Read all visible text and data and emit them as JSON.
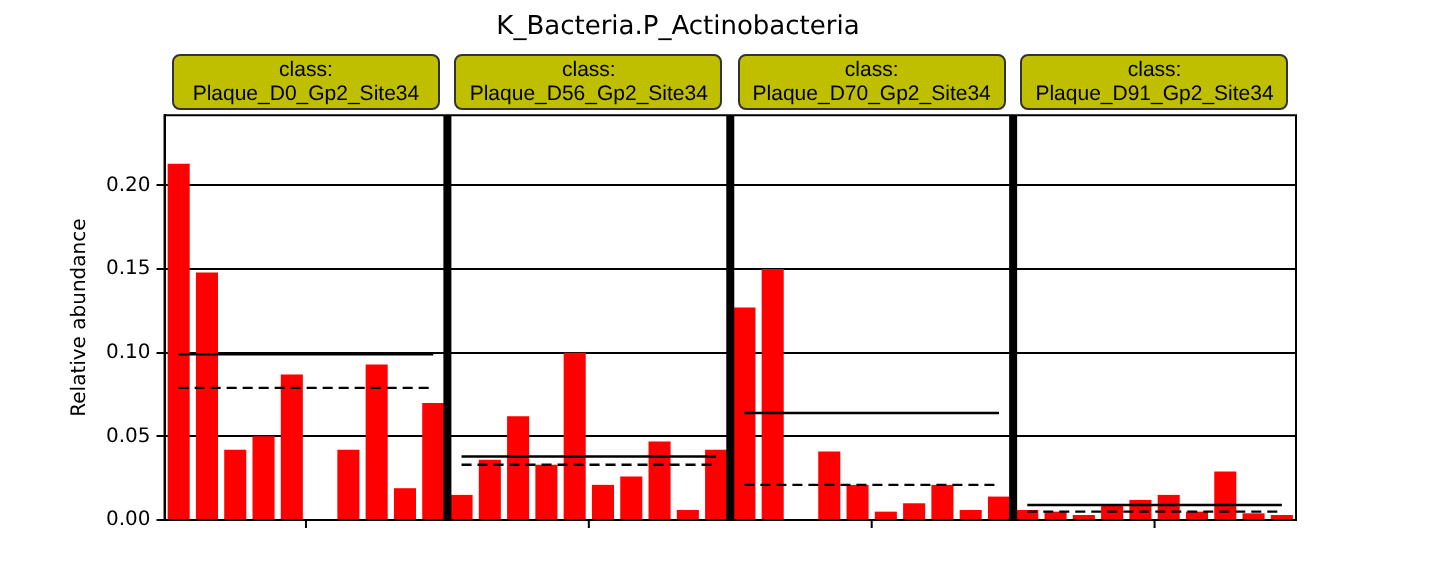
{
  "chart_data": {
    "type": "bar",
    "title": "K_Bacteria.P_Actinobacteria",
    "ylabel": "Relative abundance",
    "annotations": [
      "class: Plaque_D0_Gp2_Site34",
      "class: Plaque_D56_Gp2_Site34",
      "class: Plaque_D70_Gp2_Site34",
      "class: Plaque_D91_Gp2_Site34"
    ],
    "categories": [
      null,
      null,
      null,
      null,
      null,
      null,
      null,
      null,
      null,
      null,
      null,
      null,
      null,
      null,
      null,
      null,
      null,
      null,
      null,
      null,
      null,
      null,
      null,
      null,
      null,
      null,
      null,
      null,
      null,
      null,
      null,
      null,
      null,
      null,
      null,
      null,
      null,
      null,
      null,
      null
    ],
    "series": [
      {
        "color": "#ff0000",
        "values": [
          0.213,
          0.148,
          0.042,
          0.05,
          0.087,
          null,
          0.042,
          0.093,
          0.019,
          0.07,
          0.015,
          0.036,
          0.062,
          0.033,
          0.1,
          0.021,
          0.026,
          0.047,
          0.006,
          0.042,
          0.127,
          0.15,
          null,
          0.041,
          0.021,
          0.005,
          0.01,
          0.021,
          0.006,
          0.014,
          0.006,
          0.005,
          0.003,
          0.009,
          0.012,
          0.015,
          0.005,
          0.029,
          0.004,
          0.003
        ]
      },
      {
        "type": "line",
        "color": "#000000",
        "line_style": "solid",
        "values": [
          0.099,
          0.099,
          0.099,
          0.099,
          0.099,
          0.099,
          0.099,
          0.099,
          0.099,
          0.099,
          null,
          null,
          null,
          null,
          null,
          null,
          null,
          null,
          null,
          null,
          null,
          null,
          null,
          null,
          null,
          null,
          null,
          null,
          null,
          null,
          null,
          null,
          null,
          null,
          null,
          null,
          null,
          null,
          null,
          null
        ]
      },
      {
        "type": "line",
        "color": "#000000",
        "line_style": "dashed",
        "values": [
          0.079,
          0.079,
          0.079,
          0.079,
          0.079,
          0.079,
          0.079,
          0.079,
          0.079,
          0.079,
          null,
          null,
          null,
          null,
          null,
          null,
          null,
          null,
          null,
          null,
          null,
          null,
          null,
          null,
          null,
          null,
          null,
          null,
          null,
          null,
          null,
          null,
          null,
          null,
          null,
          null,
          null,
          null,
          null,
          null
        ]
      },
      {
        "type": "line",
        "color": "#000000",
        "line_style": "solid",
        "values": [
          null,
          null,
          null,
          null,
          null,
          null,
          null,
          null,
          null,
          null,
          0.038,
          0.038,
          0.038,
          0.038,
          0.038,
          0.038,
          0.038,
          0.038,
          0.038,
          0.038,
          null,
          null,
          null,
          null,
          null,
          null,
          null,
          null,
          null,
          null,
          null,
          null,
          null,
          null,
          null,
          null,
          null,
          null,
          null,
          null
        ]
      },
      {
        "type": "line",
        "color": "#000000",
        "line_style": "dashed",
        "values": [
          null,
          null,
          null,
          null,
          null,
          null,
          null,
          null,
          null,
          null,
          0.033,
          0.033,
          0.033,
          0.033,
          0.033,
          0.033,
          0.033,
          0.033,
          0.033,
          0.033,
          null,
          null,
          null,
          null,
          null,
          null,
          null,
          null,
          null,
          null,
          null,
          null,
          null,
          null,
          null,
          null,
          null,
          null,
          null,
          null
        ]
      },
      {
        "type": "line",
        "color": "#000000",
        "line_style": "solid",
        "values": [
          null,
          null,
          null,
          null,
          null,
          null,
          null,
          null,
          null,
          null,
          null,
          null,
          null,
          null,
          null,
          null,
          null,
          null,
          null,
          null,
          0.064,
          0.064,
          0.064,
          0.064,
          0.064,
          0.064,
          0.064,
          0.064,
          0.064,
          0.064,
          null,
          null,
          null,
          null,
          null,
          null,
          null,
          null,
          null,
          null
        ]
      },
      {
        "type": "line",
        "color": "#000000",
        "line_style": "dashed",
        "values": [
          null,
          null,
          null,
          null,
          null,
          null,
          null,
          null,
          null,
          null,
          null,
          null,
          null,
          null,
          null,
          null,
          null,
          null,
          null,
          null,
          0.021,
          0.021,
          0.021,
          0.021,
          0.021,
          0.021,
          0.021,
          0.021,
          0.021,
          0.021,
          null,
          null,
          null,
          null,
          null,
          null,
          null,
          null,
          null,
          null
        ]
      },
      {
        "type": "line",
        "color": "#000000",
        "line_style": "solid",
        "values": [
          null,
          null,
          null,
          null,
          null,
          null,
          null,
          null,
          null,
          null,
          null,
          null,
          null,
          null,
          null,
          null,
          null,
          null,
          null,
          null,
          null,
          null,
          null,
          null,
          null,
          null,
          null,
          null,
          null,
          null,
          0.009,
          0.009,
          0.009,
          0.009,
          0.009,
          0.009,
          0.009,
          0.009,
          0.009,
          0.009
        ]
      },
      {
        "type": "line",
        "color": "#000000",
        "line_style": "dashed",
        "values": [
          null,
          null,
          null,
          null,
          null,
          null,
          null,
          null,
          null,
          null,
          null,
          null,
          null,
          null,
          null,
          null,
          null,
          null,
          null,
          null,
          null,
          null,
          null,
          null,
          null,
          null,
          null,
          null,
          null,
          null,
          0.005,
          0.005,
          0.005,
          0.005,
          0.005,
          0.005,
          0.005,
          0.005,
          0.005,
          0.005
        ]
      }
    ],
    "ylim": [
      0,
      0.242
    ],
    "yticks": [
      {
        "value": 0,
        "label": "0.00"
      },
      {
        "value": 0.05,
        "label": "0.05"
      },
      {
        "value": 0.1,
        "label": "0.10"
      },
      {
        "value": 0.15,
        "label": "0.15"
      },
      {
        "value": 0.2,
        "label": "0.20"
      }
    ],
    "tick_labels": "y",
    "grid": "y",
    "legend": false
  }
}
